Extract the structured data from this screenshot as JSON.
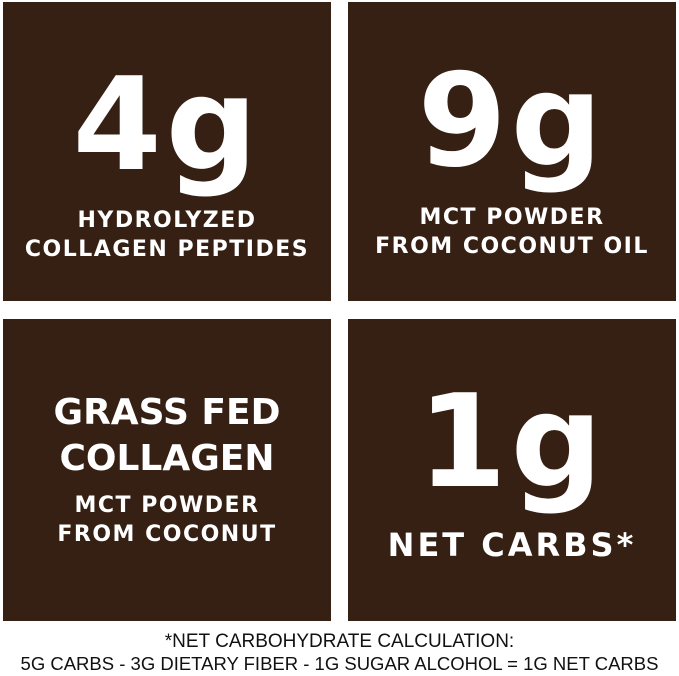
{
  "tiles": [
    {
      "value": "4g",
      "lines": [
        "HYDROLYZED",
        "COLLAGEN PEPTIDES"
      ]
    },
    {
      "value": "9g",
      "lines": [
        "MCT POWDER",
        "FROM COCONUT OIL"
      ]
    },
    {
      "headline": [
        "GRASS FED",
        "COLLAGEN"
      ],
      "lines": [
        "MCT POWDER",
        "FROM COCONUT"
      ]
    },
    {
      "value": "1g",
      "lines": [
        "NET CARBS*"
      ]
    }
  ],
  "footer": {
    "line1": "*NET CARBOHYDRATE CALCULATION:",
    "line2": "5G CARBS - 3G DIETARY FIBER - 1G SUGAR ALCOHOL = 1G NET CARBS"
  },
  "colors": {
    "tile": "#362014",
    "text": "#ffffff"
  }
}
